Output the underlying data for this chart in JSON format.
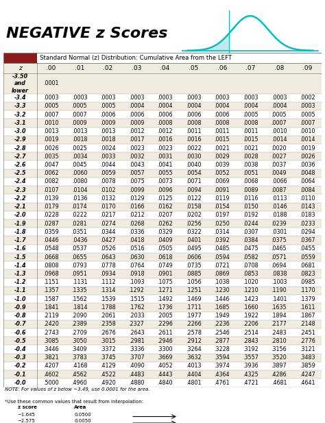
{
  "title": "NEGATIVE z Scores",
  "subtitle": "Standard Normal (z) Distribution: Cumulative Area from the LEFT",
  "col_headers": [
    "z",
    ".00",
    ".01",
    ".02",
    ".03",
    ".04",
    ".05",
    ".06",
    ".07",
    ".08",
    ".09"
  ],
  "rows": [
    [
      "-3.50\nand\nlower",
      ".0001",
      "",
      "",
      "",
      "",
      "",
      "",
      "",
      "",
      ""
    ],
    [
      "-3.4",
      ".0003",
      ".0003",
      ".0003",
      ".0003",
      ".0003",
      ".0003",
      ".0003",
      ".0003",
      ".0003",
      ".0002"
    ],
    [
      "-3.3",
      ".0005",
      ".0005",
      ".0005",
      ".0004",
      ".0004",
      ".0004",
      ".0004",
      ".0004",
      ".0004",
      ".0003"
    ],
    [
      "-3.2",
      ".0007",
      ".0007",
      ".0006",
      ".0006",
      ".0006",
      ".0006",
      ".0006",
      ".0005",
      ".0005",
      ".0005"
    ],
    [
      "-3.1",
      ".0010",
      ".0009",
      ".0009",
      ".0009",
      ".0008",
      ".0008",
      ".0008",
      ".0008",
      ".0007",
      ".0007"
    ],
    [
      "-3.0",
      ".0013",
      ".0013",
      ".0013",
      ".0012",
      ".0012",
      ".0011",
      ".0011",
      ".0011",
      ".0010",
      ".0010"
    ],
    [
      "-2.9",
      ".0019",
      ".0018",
      ".0018",
      ".0017",
      ".0016",
      ".0016",
      ".0015",
      ".0015",
      ".0014",
      ".0014"
    ],
    [
      "-2.8",
      ".0026",
      ".0025",
      ".0024",
      ".0023",
      ".0023",
      ".0022",
      ".0021",
      ".0021",
      ".0020",
      ".0019"
    ],
    [
      "-2.7",
      ".0035",
      ".0034",
      ".0033",
      ".0032",
      ".0031",
      ".0030",
      ".0029",
      ".0028",
      ".0027",
      ".0026"
    ],
    [
      "-2.6",
      ".0047",
      ".0045",
      ".0044",
      ".0043",
      ".0041",
      ".0040",
      ".0039",
      ".0038",
      ".0037",
      ".0036"
    ],
    [
      "-2.5",
      ".0062",
      ".0060",
      ".0059",
      ".0057",
      ".0055",
      ".0054",
      ".0052",
      ".0051",
      ".0049",
      ".0048"
    ],
    [
      "-2.4",
      ".0082",
      ".0080",
      ".0078",
      ".0075",
      ".0073",
      ".0071",
      ".0069",
      ".0068",
      ".0066",
      ".0064"
    ],
    [
      "-2.3",
      ".0107",
      ".0104",
      ".0102",
      ".0099",
      ".0096",
      ".0094",
      ".0091",
      ".0089",
      ".0087",
      ".0084"
    ],
    [
      "-2.2",
      ".0139",
      ".0136",
      ".0132",
      ".0129",
      ".0125",
      ".0122",
      ".0119",
      ".0116",
      ".0113",
      ".0110"
    ],
    [
      "-2.1",
      ".0179",
      ".0174",
      ".0170",
      ".0166",
      ".0162",
      ".0158",
      ".0154",
      ".0150",
      ".0146",
      ".0143"
    ],
    [
      "-2.0",
      ".0228",
      ".0222",
      ".0217",
      ".0212",
      ".0207",
      ".0202",
      ".0197",
      ".0192",
      ".0188",
      ".0183"
    ],
    [
      "-1.9",
      ".0287",
      ".0281",
      ".0274",
      ".0268",
      ".0262",
      ".0256",
      ".0250",
      ".0244",
      ".0239",
      ".0233"
    ],
    [
      "-1.8",
      ".0359",
      ".0351",
      ".0344",
      ".0336",
      ".0329",
      ".0322",
      ".0314",
      ".0307",
      ".0301",
      ".0294"
    ],
    [
      "-1.7",
      ".0446",
      ".0436",
      ".0427",
      ".0418",
      ".0409",
      ".0401",
      ".0392",
      ".0384",
      ".0375",
      ".0367"
    ],
    [
      "-1.6",
      ".0548",
      ".0537",
      ".0526",
      ".0516",
      ".0505",
      ".0495",
      ".0485",
      ".0475",
      ".0465",
      ".0455"
    ],
    [
      "-1.5",
      ".0668",
      ".0655",
      ".0643",
      ".0630",
      ".0618",
      ".0606",
      ".0594",
      ".0582",
      ".0571",
      ".0559"
    ],
    [
      "-1.4",
      ".0808",
      ".0793",
      ".0778",
      ".0764",
      ".0749",
      ".0735",
      ".0721",
      ".0708",
      ".0694",
      ".0681"
    ],
    [
      "-1.3",
      ".0968",
      ".0951",
      ".0934",
      ".0918",
      ".0901",
      ".0885",
      ".0869",
      ".0853",
      ".0838",
      ".0823"
    ],
    [
      "-1.2",
      ".1151",
      ".1131",
      ".1112",
      ".1093",
      ".1075",
      ".1056",
      ".1038",
      ".1020",
      ".1003",
      ".0985"
    ],
    [
      "-1.1",
      ".1357",
      ".1335",
      ".1314",
      ".1292",
      ".1271",
      ".1251",
      ".1230",
      ".1210",
      ".1190",
      ".1170"
    ],
    [
      "-1.0",
      ".1587",
      ".1562",
      ".1539",
      ".1515",
      ".1492",
      ".1469",
      ".1446",
      ".1423",
      ".1401",
      ".1379"
    ],
    [
      "-0.9",
      ".1841",
      ".1814",
      ".1788",
      ".1762",
      ".1736",
      ".1711",
      ".1685",
      ".1660",
      ".1635",
      ".1611"
    ],
    [
      "-0.8",
      ".2119",
      ".2090",
      ".2061",
      ".2033",
      ".2005",
      ".1977",
      ".1949",
      ".1922",
      ".1894",
      ".1867"
    ],
    [
      "-0.7",
      ".2420",
      ".2389",
      ".2358",
      ".2327",
      ".2296",
      ".2266",
      ".2236",
      ".2206",
      ".2177",
      ".2148"
    ],
    [
      "-0.6",
      ".2743",
      ".2709",
      ".2676",
      ".2643",
      ".2611",
      ".2578",
      ".2546",
      ".2514",
      ".2483",
      ".2451"
    ],
    [
      "-0.5",
      ".3085",
      ".3050",
      ".3015",
      ".2981",
      ".2946",
      ".2912",
      ".2877",
      ".2843",
      ".2810",
      ".2776"
    ],
    [
      "-0.4",
      ".3446",
      ".3409",
      ".3372",
      ".3336",
      ".3300",
      ".3264",
      ".3228",
      ".3192",
      ".3156",
      ".3121"
    ],
    [
      "-0.3",
      ".3821",
      ".3783",
      ".3745",
      ".3707",
      ".3669",
      ".3632",
      ".3594",
      ".3557",
      ".3520",
      ".3483"
    ],
    [
      "-0.2",
      ".4207",
      ".4168",
      ".4129",
      ".4090",
      ".4052",
      ".4013",
      ".3974",
      ".3936",
      ".3897",
      ".3859"
    ],
    [
      "-0.1",
      ".4602",
      ".4562",
      ".4522",
      ".4483",
      ".4443",
      ".4404",
      ".4364",
      ".4325",
      ".4286",
      ".4247"
    ],
    [
      "-0.0",
      ".5000",
      ".4960",
      ".4920",
      ".4880",
      ".4840",
      ".4801",
      ".4761",
      ".4721",
      ".4681",
      ".4641"
    ]
  ],
  "note1": "NOTE: For values of z below −3.49, use 0.0001 for the area.",
  "note2": "*Use these common values that result from interpolation:",
  "extra_rows": [
    [
      "z score",
      "Area"
    ],
    [
      "−1.645",
      "0.0500"
    ],
    [
      "−2.575",
      "0.0050"
    ]
  ],
  "bg_color": "#f0ece0",
  "header_bg": "#8B1A1A",
  "white": "#ffffff",
  "curve_color": "#00BFBF",
  "shaded_color": "#b8e8e8",
  "title_fontsize": 16,
  "subtitle_fontsize": 6.2,
  "header_fontsize": 6.5,
  "data_fontsize": 5.8
}
